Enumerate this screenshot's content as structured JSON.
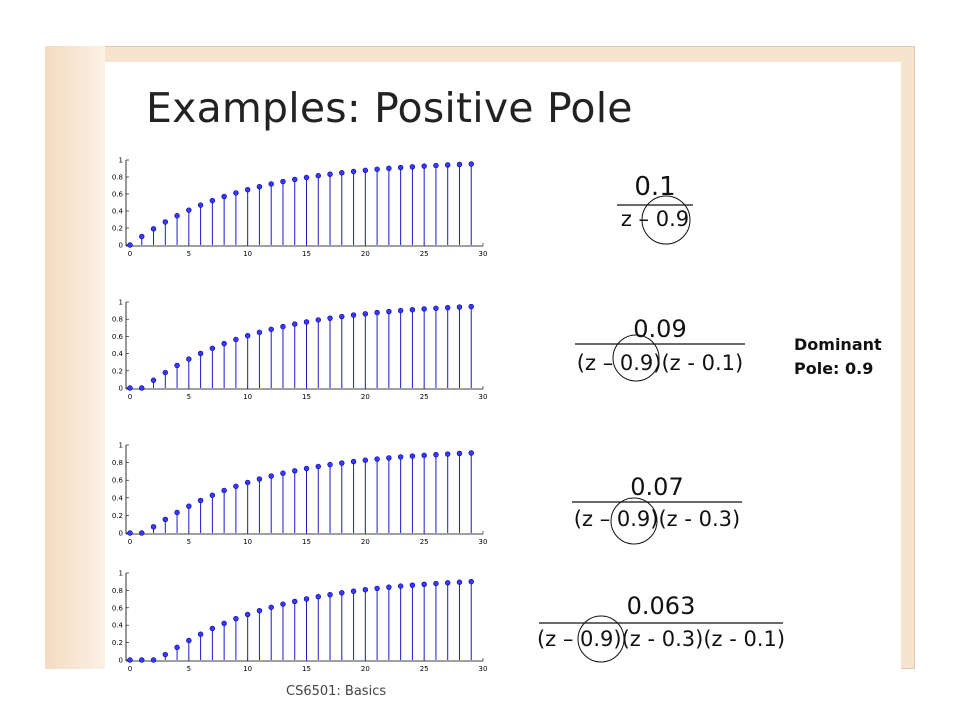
{
  "slide": {
    "title": "Examples: Positive Pole",
    "footer": "CS6501: Basics",
    "annotation": [
      "Dominant",
      "Pole: 0.9"
    ]
  },
  "colors": {
    "stem": "#1a1acc",
    "marker": "#3a3aff"
  },
  "chart_data": [
    {
      "type": "stem",
      "transfer_function": {
        "numerator": "0.1",
        "denominator": [
          "z – 0.9"
        ]
      },
      "x": [
        0,
        1,
        2,
        3,
        4,
        5,
        6,
        7,
        8,
        9,
        10,
        11,
        12,
        13,
        14,
        15,
        16,
        17,
        18,
        19,
        20,
        21,
        22,
        23,
        24,
        25,
        26,
        27,
        28,
        29
      ],
      "values": [
        0,
        0.1,
        0.19,
        0.271,
        0.344,
        0.41,
        0.469,
        0.522,
        0.57,
        0.613,
        0.651,
        0.686,
        0.718,
        0.746,
        0.771,
        0.794,
        0.815,
        0.833,
        0.85,
        0.865,
        0.878,
        0.891,
        0.902,
        0.911,
        0.92,
        0.928,
        0.935,
        0.942,
        0.948,
        0.953
      ],
      "xlim": [
        0,
        30
      ],
      "ylim": [
        0,
        1
      ],
      "xticks": [
        "0",
        "5",
        "10",
        "15",
        "20",
        "25",
        "30"
      ],
      "yticks": [
        "0",
        "0.2",
        "0.4",
        "0.6",
        "0.8",
        "1"
      ]
    },
    {
      "type": "stem",
      "transfer_function": {
        "numerator": "0.09",
        "denominator": [
          "(z – 0.9)",
          "(z - 0.1)"
        ]
      },
      "x": [
        0,
        1,
        2,
        3,
        4,
        5,
        6,
        7,
        8,
        9,
        10,
        11,
        12,
        13,
        14,
        15,
        16,
        17,
        18,
        19,
        20,
        21,
        22,
        23,
        24,
        25,
        26,
        27,
        28,
        29
      ],
      "values": [
        0,
        0,
        0.09,
        0.18,
        0.262,
        0.336,
        0.402,
        0.462,
        0.516,
        0.564,
        0.608,
        0.647,
        0.682,
        0.714,
        0.743,
        0.768,
        0.792,
        0.812,
        0.831,
        0.848,
        0.863,
        0.877,
        0.889,
        0.9,
        0.91,
        0.919,
        0.927,
        0.934,
        0.941,
        0.947
      ],
      "xlim": [
        0,
        30
      ],
      "ylim": [
        0,
        1
      ],
      "xticks": [
        "0",
        "5",
        "10",
        "15",
        "20",
        "25",
        "30"
      ],
      "yticks": [
        "0",
        "0.2",
        "0.4",
        "0.6",
        "0.8",
        "1"
      ]
    },
    {
      "type": "stem",
      "transfer_function": {
        "numerator": "0.07",
        "denominator": [
          "(z – 0.9)",
          "(z - 0.3)"
        ]
      },
      "x": [
        0,
        1,
        2,
        3,
        4,
        5,
        6,
        7,
        8,
        9,
        10,
        11,
        12,
        13,
        14,
        15,
        16,
        17,
        18,
        19,
        20,
        21,
        22,
        23,
        24,
        25,
        26,
        27,
        28,
        29
      ],
      "values": [
        0,
        0,
        0.07,
        0.154,
        0.233,
        0.305,
        0.37,
        0.429,
        0.483,
        0.531,
        0.574,
        0.613,
        0.647,
        0.679,
        0.707,
        0.733,
        0.756,
        0.777,
        0.795,
        0.812,
        0.827,
        0.84,
        0.853,
        0.864,
        0.874,
        0.882,
        0.89,
        0.897,
        0.904,
        0.91
      ],
      "xlim": [
        0,
        30
      ],
      "ylim": [
        0,
        1
      ],
      "xticks": [
        "0",
        "5",
        "10",
        "15",
        "20",
        "25",
        "30"
      ],
      "yticks": [
        "0",
        "0.2",
        "0.4",
        "0.6",
        "0.8",
        "1"
      ]
    },
    {
      "type": "stem",
      "transfer_function": {
        "numerator": "0.063",
        "denominator": [
          "(z – 0.9)",
          "(z - 0.3)",
          "(z - 0.1)"
        ]
      },
      "x": [
        0,
        1,
        2,
        3,
        4,
        5,
        6,
        7,
        8,
        9,
        10,
        11,
        12,
        13,
        14,
        15,
        16,
        17,
        18,
        19,
        20,
        21,
        22,
        23,
        24,
        25,
        26,
        27,
        28,
        29
      ],
      "values": [
        0,
        0,
        0,
        0.063,
        0.145,
        0.224,
        0.296,
        0.362,
        0.421,
        0.475,
        0.524,
        0.567,
        0.606,
        0.642,
        0.673,
        0.702,
        0.728,
        0.751,
        0.772,
        0.791,
        0.808,
        0.823,
        0.837,
        0.849,
        0.86,
        0.87,
        0.879,
        0.887,
        0.894,
        0.901
      ],
      "xlim": [
        0,
        30
      ],
      "ylim": [
        0,
        1
      ],
      "xticks": [
        "0",
        "5",
        "10",
        "15",
        "20",
        "25",
        "30"
      ],
      "yticks": [
        "0",
        "0.2",
        "0.4",
        "0.6",
        "0.8",
        "1"
      ]
    }
  ]
}
